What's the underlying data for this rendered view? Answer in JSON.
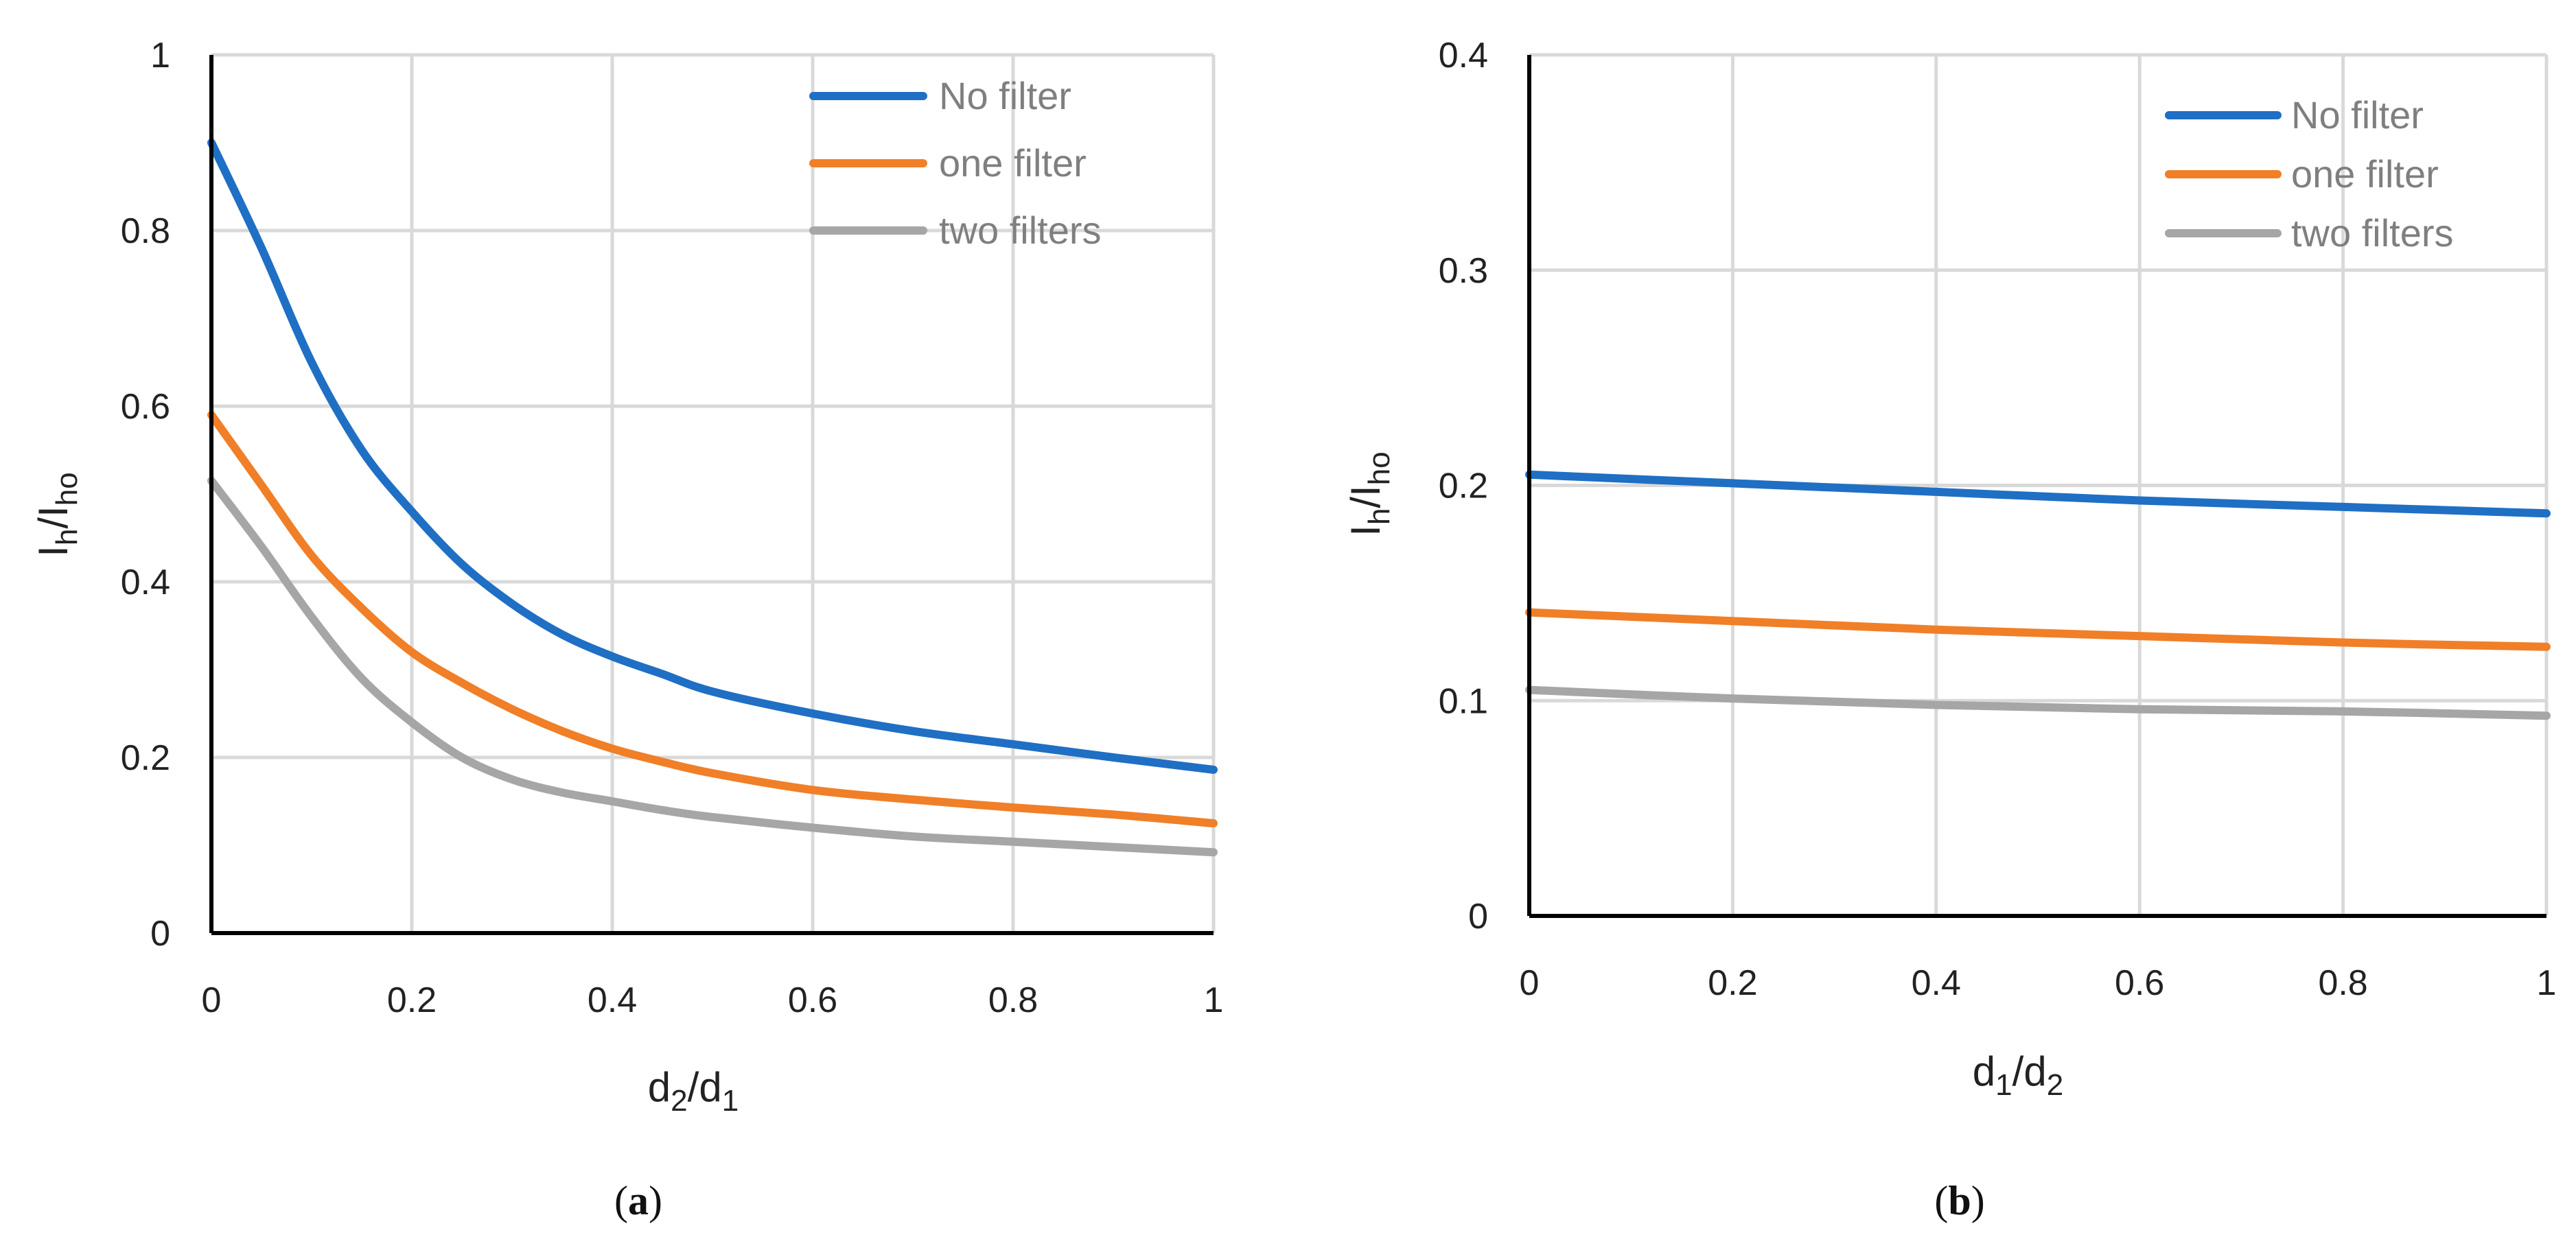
{
  "chart_data": [
    {
      "type": "line",
      "panel": "a",
      "caption_letter": "a",
      "xlabel_main": "d",
      "xlabel_sub1": "2",
      "xlabel_sep": "/d",
      "xlabel_sub2": "1",
      "ylabel_main1": "I",
      "ylabel_sub1": "h",
      "ylabel_sep": "/I",
      "ylabel_sub2": "ho",
      "xlim": [
        0,
        1
      ],
      "ylim": [
        0,
        1
      ],
      "x_ticks": [
        "0",
        "0.2",
        "0.4",
        "0.6",
        "0.8",
        "1"
      ],
      "y_ticks": [
        "0",
        "0.2",
        "0.4",
        "0.6",
        "0.8",
        "1"
      ],
      "legend_position": "top-right",
      "series": [
        {
          "name": "No filter",
          "color": "#1f6fc4",
          "x": [
            0,
            0.05,
            0.1,
            0.15,
            0.2,
            0.25,
            0.3,
            0.35,
            0.4,
            0.45,
            0.5,
            0.6,
            0.7,
            0.8,
            0.9,
            1.0
          ],
          "y": [
            0.9,
            0.78,
            0.65,
            0.55,
            0.48,
            0.42,
            0.375,
            0.34,
            0.315,
            0.295,
            0.275,
            0.25,
            0.23,
            0.215,
            0.2,
            0.186
          ]
        },
        {
          "name": "one filter",
          "color": "#f07f28",
          "x": [
            0,
            0.05,
            0.1,
            0.15,
            0.2,
            0.25,
            0.3,
            0.35,
            0.4,
            0.45,
            0.5,
            0.6,
            0.7,
            0.8,
            0.9,
            1.0
          ],
          "y": [
            0.59,
            0.51,
            0.43,
            0.37,
            0.32,
            0.285,
            0.255,
            0.23,
            0.21,
            0.195,
            0.182,
            0.163,
            0.152,
            0.143,
            0.135,
            0.125
          ]
        },
        {
          "name": "two filters",
          "color": "#a6a6a6",
          "x": [
            0,
            0.05,
            0.1,
            0.15,
            0.2,
            0.25,
            0.3,
            0.35,
            0.4,
            0.45,
            0.5,
            0.6,
            0.7,
            0.8,
            0.9,
            1.0
          ],
          "y": [
            0.515,
            0.44,
            0.36,
            0.29,
            0.24,
            0.2,
            0.175,
            0.16,
            0.15,
            0.14,
            0.132,
            0.12,
            0.11,
            0.104,
            0.098,
            0.092
          ]
        }
      ]
    },
    {
      "type": "line",
      "panel": "b",
      "caption_letter": "b",
      "xlabel_main": "d",
      "xlabel_sub1": "1",
      "xlabel_sep": "/d",
      "xlabel_sub2": "2",
      "ylabel_main1": "I",
      "ylabel_sub1": "h",
      "ylabel_sep": "/I",
      "ylabel_sub2": "ho",
      "xlim": [
        0,
        1
      ],
      "ylim": [
        0,
        0.4
      ],
      "x_ticks": [
        "0",
        "0.2",
        "0.4",
        "0.6",
        "0.8",
        "1"
      ],
      "y_ticks": [
        "0",
        "0.1",
        "0.2",
        "0.3",
        "0.4"
      ],
      "legend_position": "top-right",
      "series": [
        {
          "name": "No filter",
          "color": "#1f6fc4",
          "x": [
            0,
            0.2,
            0.4,
            0.6,
            0.8,
            1.0
          ],
          "y": [
            0.205,
            0.201,
            0.197,
            0.193,
            0.19,
            0.187
          ]
        },
        {
          "name": "one filter",
          "color": "#f07f28",
          "x": [
            0,
            0.2,
            0.4,
            0.6,
            0.8,
            1.0
          ],
          "y": [
            0.141,
            0.137,
            0.133,
            0.13,
            0.127,
            0.125
          ]
        },
        {
          "name": "two filters",
          "color": "#a6a6a6",
          "x": [
            0,
            0.2,
            0.4,
            0.6,
            0.8,
            1.0
          ],
          "y": [
            0.105,
            0.101,
            0.098,
            0.096,
            0.095,
            0.093
          ]
        }
      ]
    }
  ]
}
